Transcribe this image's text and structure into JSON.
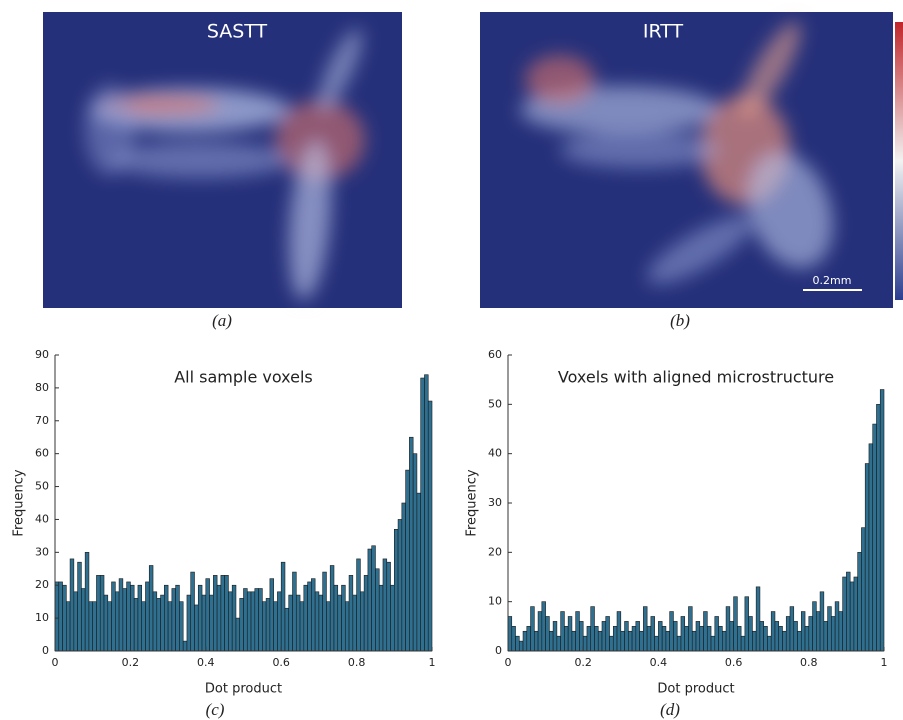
{
  "images": [
    {
      "title": "SASTT",
      "caption": "(a)"
    },
    {
      "title": "IRTT",
      "caption": "(b)",
      "scale_bar": "0.2mm"
    }
  ],
  "chart_data": [
    {
      "type": "histogram",
      "title": "All sample voxels",
      "xlabel": "Dot product",
      "ylabel": "Frequency",
      "caption": "(c)",
      "color": "#2f7090",
      "bins": [
        0,
        0.01,
        0.02,
        0.03,
        0.04,
        0.05,
        0.06,
        0.07,
        0.08,
        0.09,
        0.1,
        0.11,
        0.12,
        0.13,
        0.14,
        0.15,
        0.16,
        0.17,
        0.18,
        0.19,
        0.2,
        0.21,
        0.22,
        0.23,
        0.24,
        0.25,
        0.26,
        0.27,
        0.28,
        0.29,
        0.3,
        0.31,
        0.32,
        0.33,
        0.34,
        0.35,
        0.36,
        0.37,
        0.38,
        0.39,
        0.4,
        0.41,
        0.42,
        0.43,
        0.44,
        0.45,
        0.46,
        0.47,
        0.48,
        0.49,
        0.5,
        0.51,
        0.52,
        0.53,
        0.54,
        0.55,
        0.56,
        0.57,
        0.58,
        0.59,
        0.6,
        0.61,
        0.62,
        0.63,
        0.64,
        0.65,
        0.66,
        0.67,
        0.68,
        0.69,
        0.7,
        0.71,
        0.72,
        0.73,
        0.74,
        0.75,
        0.76,
        0.77,
        0.78,
        0.79,
        0.8,
        0.81,
        0.82,
        0.83,
        0.84,
        0.85,
        0.86,
        0.87,
        0.88,
        0.89,
        0.9,
        0.91,
        0.92,
        0.93,
        0.94,
        0.95,
        0.96,
        0.97,
        0.98,
        0.99,
        1
      ],
      "values": [
        21,
        21,
        20,
        15,
        28,
        18,
        27,
        19,
        30,
        15,
        15,
        23,
        23,
        17,
        15,
        21,
        18,
        22,
        19,
        21,
        20,
        16,
        20,
        15,
        21,
        26,
        18,
        16,
        17,
        20,
        15,
        19,
        20,
        15,
        3,
        17,
        24,
        14,
        20,
        17,
        22,
        17,
        23,
        20,
        23,
        23,
        18,
        20,
        10,
        16,
        19,
        18,
        18,
        19,
        19,
        15,
        16,
        22,
        15,
        18,
        27,
        13,
        17,
        24,
        17,
        15,
        20,
        21,
        22,
        18,
        17,
        24,
        15,
        26,
        20,
        17,
        20,
        15,
        23,
        17,
        28,
        18,
        23,
        31,
        32,
        25,
        20,
        28,
        27,
        20,
        37,
        40,
        45,
        55,
        65,
        60,
        48,
        83,
        84,
        76
      ],
      "xlim": [
        0,
        1
      ],
      "ylim": [
        0,
        90
      ],
      "xticks": [
        0,
        0.2,
        0.4,
        0.6,
        0.8,
        1
      ],
      "yticks": [
        0,
        10,
        20,
        30,
        40,
        50,
        60,
        70,
        80,
        90
      ]
    },
    {
      "type": "histogram",
      "title": "Voxels with aligned microstructure",
      "xlabel": "Dot product",
      "ylabel": "Frequency",
      "caption": "(d)",
      "color": "#2f7090",
      "bins": [
        0,
        0.01,
        0.02,
        0.03,
        0.04,
        0.05,
        0.06,
        0.07,
        0.08,
        0.09,
        0.1,
        0.11,
        0.12,
        0.13,
        0.14,
        0.15,
        0.16,
        0.17,
        0.18,
        0.19,
        0.2,
        0.21,
        0.22,
        0.23,
        0.24,
        0.25,
        0.26,
        0.27,
        0.28,
        0.29,
        0.3,
        0.31,
        0.32,
        0.33,
        0.34,
        0.35,
        0.36,
        0.37,
        0.38,
        0.39,
        0.4,
        0.41,
        0.42,
        0.43,
        0.44,
        0.45,
        0.46,
        0.47,
        0.48,
        0.49,
        0.5,
        0.51,
        0.52,
        0.53,
        0.54,
        0.55,
        0.56,
        0.57,
        0.58,
        0.59,
        0.6,
        0.61,
        0.62,
        0.63,
        0.64,
        0.65,
        0.66,
        0.67,
        0.68,
        0.69,
        0.7,
        0.71,
        0.72,
        0.73,
        0.74,
        0.75,
        0.76,
        0.77,
        0.78,
        0.79,
        0.8,
        0.81,
        0.82,
        0.83,
        0.84,
        0.85,
        0.86,
        0.87,
        0.88,
        0.89,
        0.9,
        0.91,
        0.92,
        0.93,
        0.94,
        0.95,
        0.96,
        0.97,
        0.98,
        0.99,
        1
      ],
      "values": [
        7,
        5,
        3,
        2,
        4,
        5,
        9,
        4,
        8,
        10,
        7,
        4,
        6,
        3,
        8,
        5,
        7,
        4,
        8,
        6,
        3,
        5,
        9,
        5,
        4,
        6,
        7,
        3,
        5,
        8,
        4,
        6,
        4,
        5,
        6,
        4,
        9,
        5,
        7,
        3,
        6,
        5,
        4,
        8,
        6,
        3,
        7,
        5,
        9,
        4,
        6,
        5,
        8,
        5,
        3,
        7,
        5,
        4,
        9,
        6,
        11,
        5,
        3,
        11,
        7,
        4,
        13,
        6,
        5,
        3,
        8,
        6,
        5,
        4,
        7,
        9,
        6,
        4,
        8,
        5,
        7,
        10,
        8,
        12,
        6,
        9,
        7,
        10,
        8,
        15,
        16,
        14,
        15,
        20,
        25,
        38,
        42,
        46,
        50,
        53
      ],
      "xlim": [
        0,
        1
      ],
      "ylim": [
        0,
        60
      ],
      "xticks": [
        0,
        0.2,
        0.4,
        0.6,
        0.8,
        1
      ],
      "yticks": [
        0,
        10,
        20,
        30,
        40,
        50,
        60
      ]
    }
  ]
}
